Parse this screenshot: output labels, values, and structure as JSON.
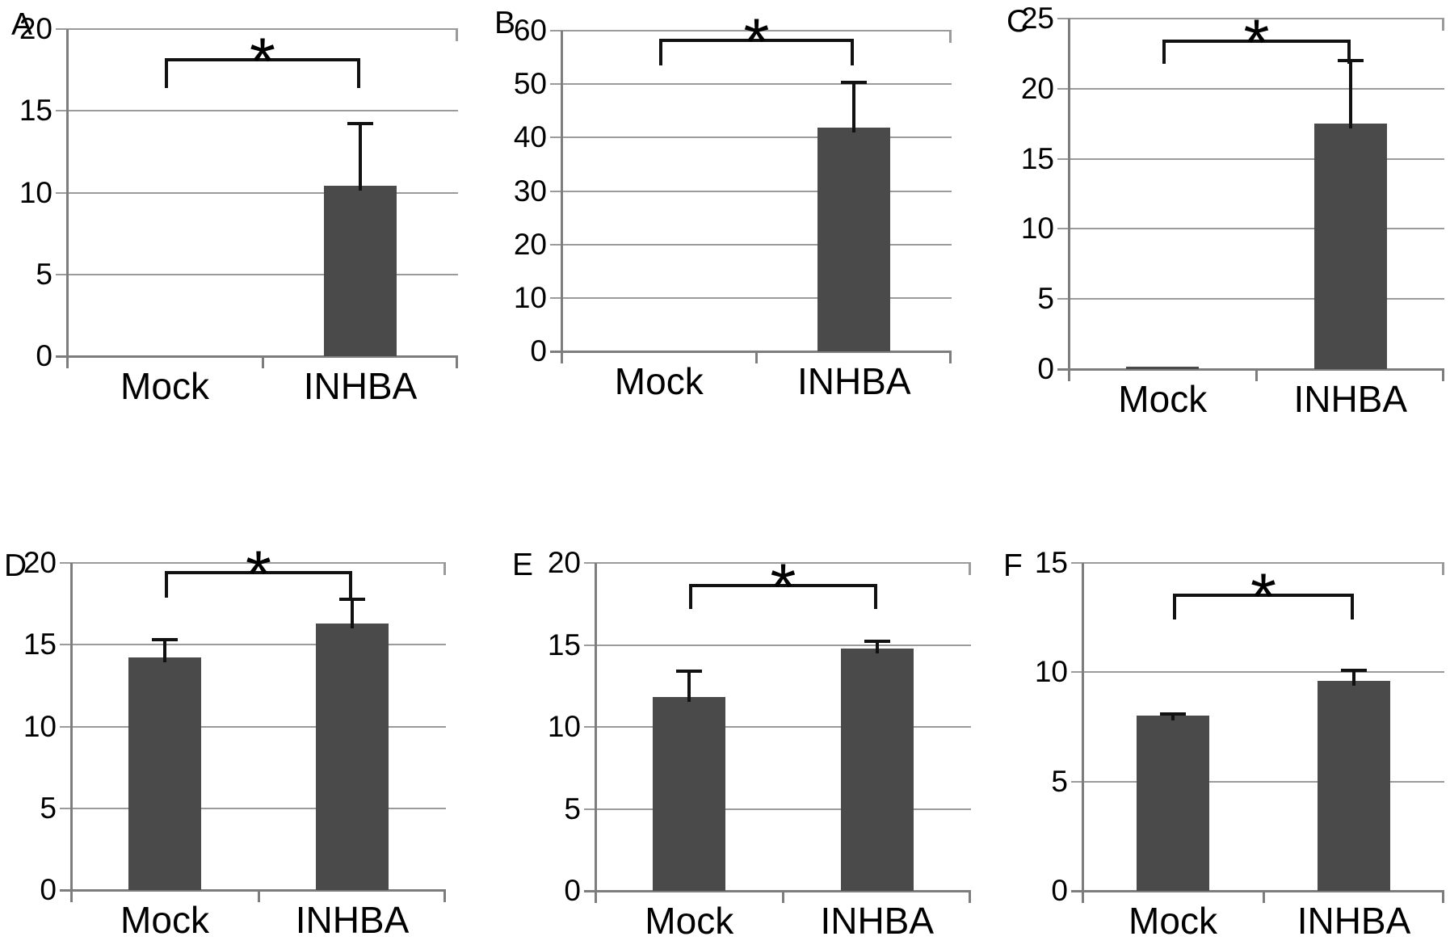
{
  "figure": {
    "background": "#ffffff",
    "bar_color": "#4a4a4a",
    "gridline_color": "#9b9b9b",
    "axis_color": "#7d7d7d",
    "annotation_color": "#111111"
  },
  "chart_data": [
    {
      "panel": "A",
      "type": "bar",
      "categories": [
        "Mock",
        "INHBA"
      ],
      "values": [
        0,
        10.4
      ],
      "error_top": [
        null,
        14.2
      ],
      "ylim": [
        0,
        20
      ],
      "yticks": [
        0,
        5,
        10,
        15,
        20
      ],
      "grid": true,
      "legend": false,
      "significance": {
        "symbol": "*",
        "between": [
          "Mock",
          "INHBA"
        ],
        "bracket_top": 18.2,
        "bracket_drop_to": 16.4
      }
    },
    {
      "panel": "B",
      "type": "bar",
      "categories": [
        "Mock",
        "INHBA"
      ],
      "values": [
        0,
        41.8
      ],
      "error_top": [
        null,
        50.3
      ],
      "ylim": [
        0,
        60
      ],
      "yticks": [
        0,
        10,
        20,
        30,
        40,
        50,
        60
      ],
      "grid": true,
      "legend": false,
      "significance": {
        "symbol": "*",
        "between": [
          "Mock",
          "INHBA"
        ],
        "bracket_top": 58.5,
        "bracket_drop_to": 53.5
      }
    },
    {
      "panel": "C",
      "type": "bar",
      "categories": [
        "Mock",
        "INHBA"
      ],
      "values": [
        0.2,
        17.5
      ],
      "error_top": [
        null,
        22.0
      ],
      "ylim": [
        0,
        25
      ],
      "yticks": [
        0,
        5,
        10,
        15,
        20,
        25
      ],
      "grid": true,
      "legend": false,
      "significance": {
        "symbol": "*",
        "between": [
          "Mock",
          "INHBA"
        ],
        "bracket_top": 23.5,
        "bracket_drop_to": 21.8
      }
    },
    {
      "panel": "D",
      "type": "bar",
      "categories": [
        "Mock",
        "INHBA"
      ],
      "values": [
        14.2,
        16.3
      ],
      "error_top": [
        15.3,
        17.8
      ],
      "ylim": [
        0,
        20
      ],
      "yticks": [
        0,
        5,
        10,
        15,
        20
      ],
      "grid": true,
      "legend": false,
      "significance": {
        "symbol": "*",
        "between": [
          "Mock",
          "INHBA"
        ],
        "bracket_top": 19.5,
        "bracket_drop_to": 17.9
      }
    },
    {
      "panel": "E",
      "type": "bar",
      "categories": [
        "Mock",
        "INHBA"
      ],
      "values": [
        11.8,
        14.8
      ],
      "error_top": [
        13.4,
        15.2
      ],
      "ylim": [
        0,
        20
      ],
      "yticks": [
        0,
        5,
        10,
        15,
        20
      ],
      "grid": true,
      "legend": false,
      "significance": {
        "symbol": "*",
        "between": [
          "Mock",
          "INHBA"
        ],
        "bracket_top": 18.7,
        "bracket_drop_to": 17.2
      }
    },
    {
      "panel": "F",
      "type": "bar",
      "categories": [
        "Mock",
        "INHBA"
      ],
      "values": [
        8.0,
        9.6
      ],
      "error_top": [
        8.1,
        10.1
      ],
      "ylim": [
        0,
        15
      ],
      "yticks": [
        0,
        5,
        10,
        15
      ],
      "grid": true,
      "legend": false,
      "significance": {
        "symbol": "*",
        "between": [
          "Mock",
          "INHBA"
        ],
        "bracket_top": 13.6,
        "bracket_drop_to": 12.4
      }
    }
  ]
}
